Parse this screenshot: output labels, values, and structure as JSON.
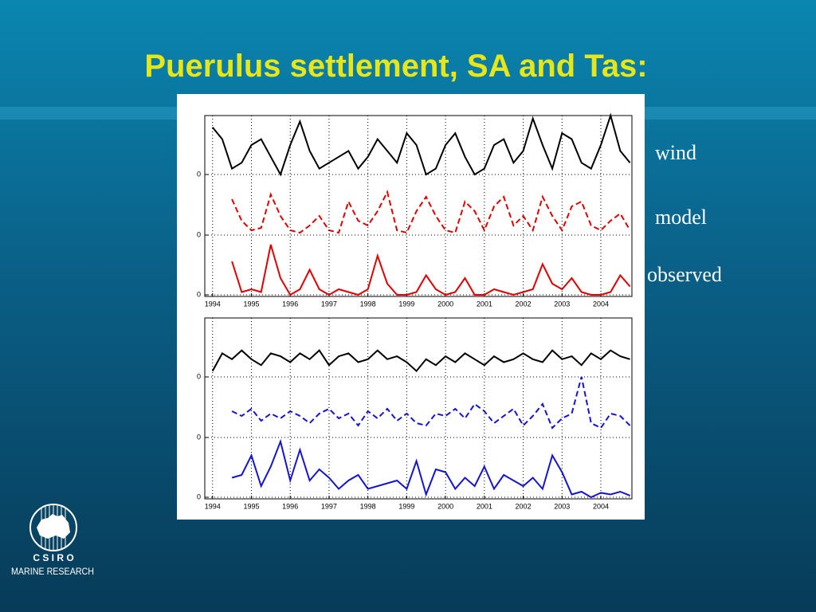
{
  "title": "Puerulus settlement, SA and Tas:",
  "trace_labels": [
    "wind",
    "model",
    "observed"
  ],
  "logo": {
    "name": "C S I R O",
    "division": "MARINE RESEARCH"
  },
  "chart_data": [
    {
      "type": "line",
      "xlim": [
        1993.8,
        2004.8
      ],
      "ylim": [
        -1,
        1
      ],
      "yticks": [
        0
      ],
      "grid": true,
      "x": [
        1994,
        1994.25,
        1994.5,
        1994.75,
        1995,
        1995.25,
        1995.5,
        1995.75,
        1996,
        1996.25,
        1996.5,
        1996.75,
        1997,
        1997.25,
        1997.5,
        1997.75,
        1998,
        1998.25,
        1998.5,
        1998.75,
        1999,
        1999.25,
        1999.5,
        1999.75,
        2000,
        2000.25,
        2000.5,
        2000.75,
        2001,
        2001.25,
        2001.5,
        2001.75,
        2002,
        2002.25,
        2002.5,
        2002.75,
        2003,
        2003.25,
        2003.5,
        2003.75,
        2004,
        2004.25,
        2004.5,
        2004.75
      ],
      "series": [
        {
          "color": "#000000",
          "line_style": "solid",
          "values": [
            0.8,
            0.6,
            0.1,
            0.2,
            0.5,
            0.6,
            0.3,
            0.0,
            0.5,
            0.9,
            0.4,
            0.1,
            0.2,
            0.3,
            0.4,
            0.1,
            0.3,
            0.6,
            0.4,
            0.2,
            0.7,
            0.5,
            0.0,
            0.1,
            0.5,
            0.7,
            0.3,
            0.0,
            0.1,
            0.5,
            0.6,
            0.2,
            0.4,
            0.95,
            0.5,
            0.1,
            0.7,
            0.6,
            0.2,
            0.1,
            0.5,
            1.0,
            0.4,
            0.2
          ]
        }
      ]
    },
    {
      "type": "line",
      "xlim": [
        1993.8,
        2004.8
      ],
      "ylim": [
        0,
        1.3
      ],
      "yticks": [
        0
      ],
      "grid": true,
      "x": [
        1994.5,
        1994.75,
        1995,
        1995.25,
        1995.5,
        1995.75,
        1996,
        1996.25,
        1996.5,
        1996.75,
        1997,
        1997.25,
        1997.5,
        1997.75,
        1998,
        1998.25,
        1998.5,
        1998.75,
        1999,
        1999.25,
        1999.5,
        1999.75,
        2000,
        2000.25,
        2000.5,
        2000.75,
        2001,
        2001.25,
        2001.5,
        2001.75,
        2002,
        2002.25,
        2002.5,
        2002.75,
        2003,
        2003.25,
        2003.5,
        2003.75,
        2004,
        2004.25,
        2004.5,
        2004.75
      ],
      "series": [
        {
          "color": "#e00000",
          "line_style": "dashed",
          "values": [
            0.75,
            0.3,
            0.1,
            0.15,
            0.85,
            0.4,
            0.1,
            0.05,
            0.2,
            0.4,
            0.1,
            0.05,
            0.7,
            0.3,
            0.2,
            0.5,
            0.9,
            0.1,
            0.05,
            0.5,
            0.8,
            0.4,
            0.1,
            0.05,
            0.7,
            0.5,
            0.1,
            0.6,
            0.8,
            0.2,
            0.4,
            0.1,
            0.8,
            0.4,
            0.1,
            0.6,
            0.7,
            0.2,
            0.1,
            0.3,
            0.45,
            0.1
          ]
        }
      ]
    },
    {
      "type": "line",
      "xlim": [
        1993.8,
        2004.8
      ],
      "ylim": [
        0,
        1.2
      ],
      "yticks": [
        0
      ],
      "grid": true,
      "xticks": [
        1994,
        1995,
        1996,
        1997,
        1998,
        1999,
        2000,
        2001,
        2002,
        2003,
        2004
      ],
      "x": [
        1994.5,
        1994.75,
        1995,
        1995.25,
        1995.5,
        1995.75,
        1996,
        1996.25,
        1996.5,
        1996.75,
        1997,
        1997.25,
        1997.5,
        1997.75,
        1998,
        1998.25,
        1998.5,
        1998.75,
        1999,
        1999.25,
        1999.5,
        1999.75,
        2000,
        2000.25,
        2000.5,
        2000.75,
        2001,
        2001.25,
        2001.5,
        2001.75,
        2002,
        2002.25,
        2002.5,
        2002.75,
        2003,
        2003.25,
        2003.5,
        2003.75,
        2004,
        2004.25,
        2004.5,
        2004.75
      ],
      "series": [
        {
          "color": "#e00000",
          "line_style": "solid",
          "values": [
            0.6,
            0.05,
            0.1,
            0.05,
            0.9,
            0.3,
            0.0,
            0.1,
            0.45,
            0.1,
            0.0,
            0.1,
            0.05,
            0.0,
            0.1,
            0.7,
            0.2,
            0.0,
            0.0,
            0.05,
            0.35,
            0.1,
            0.0,
            0.05,
            0.3,
            0.0,
            0.0,
            0.1,
            0.05,
            0.0,
            0.05,
            0.1,
            0.55,
            0.2,
            0.1,
            0.3,
            0.05,
            0.0,
            0.0,
            0.05,
            0.35,
            0.15
          ]
        }
      ]
    },
    {
      "type": "line",
      "xlim": [
        1993.8,
        2004.8
      ],
      "ylim": [
        -1,
        1
      ],
      "yticks": [
        0
      ],
      "grid": true,
      "x": [
        1994,
        1994.25,
        1994.5,
        1994.75,
        1995,
        1995.25,
        1995.5,
        1995.75,
        1996,
        1996.25,
        1996.5,
        1996.75,
        1997,
        1997.25,
        1997.5,
        1997.75,
        1998,
        1998.25,
        1998.5,
        1998.75,
        1999,
        1999.25,
        1999.5,
        1999.75,
        2000,
        2000.25,
        2000.5,
        2000.75,
        2001,
        2001.25,
        2001.5,
        2001.75,
        2002,
        2002.25,
        2002.5,
        2002.75,
        2003,
        2003.25,
        2003.5,
        2003.75,
        2004,
        2004.25,
        2004.5,
        2004.75
      ],
      "series": [
        {
          "color": "#000000",
          "line_style": "solid",
          "values": [
            0.1,
            0.4,
            0.3,
            0.45,
            0.3,
            0.2,
            0.4,
            0.35,
            0.25,
            0.4,
            0.3,
            0.45,
            0.2,
            0.35,
            0.4,
            0.25,
            0.3,
            0.45,
            0.3,
            0.35,
            0.25,
            0.1,
            0.3,
            0.2,
            0.35,
            0.25,
            0.4,
            0.3,
            0.2,
            0.35,
            0.25,
            0.3,
            0.4,
            0.3,
            0.25,
            0.45,
            0.3,
            0.35,
            0.2,
            0.4,
            0.3,
            0.45,
            0.35,
            0.3
          ]
        }
      ]
    },
    {
      "type": "line",
      "xlim": [
        1993.8,
        2004.8
      ],
      "ylim": [
        0,
        1.3
      ],
      "yticks": [
        0
      ],
      "grid": true,
      "x": [
        1994.5,
        1994.75,
        1995,
        1995.25,
        1995.5,
        1995.75,
        1996,
        1996.25,
        1996.5,
        1996.75,
        1997,
        1997.25,
        1997.5,
        1997.75,
        1998,
        1998.25,
        1998.5,
        1998.75,
        1999,
        1999.25,
        1999.5,
        1999.75,
        2000,
        2000.25,
        2000.5,
        2000.75,
        2001,
        2001.25,
        2001.5,
        2001.75,
        2002,
        2002.25,
        2002.5,
        2002.75,
        2003,
        2003.25,
        2003.5,
        2003.75,
        2004,
        2004.25,
        2004.5,
        2004.75
      ],
      "series": [
        {
          "color": "#1414d2",
          "line_style": "dashed",
          "values": [
            0.55,
            0.45,
            0.6,
            0.35,
            0.5,
            0.4,
            0.55,
            0.45,
            0.3,
            0.5,
            0.6,
            0.4,
            0.5,
            0.25,
            0.55,
            0.4,
            0.6,
            0.35,
            0.5,
            0.3,
            0.25,
            0.5,
            0.45,
            0.6,
            0.4,
            0.7,
            0.55,
            0.3,
            0.45,
            0.6,
            0.25,
            0.45,
            0.7,
            0.2,
            0.4,
            0.5,
            1.27,
            0.3,
            0.2,
            0.5,
            0.45,
            0.25
          ]
        }
      ]
    },
    {
      "type": "line",
      "xlim": [
        1993.8,
        2004.8
      ],
      "ylim": [
        0,
        1.2
      ],
      "yticks": [
        0
      ],
      "grid": true,
      "xticks": [
        1994,
        1995,
        1996,
        1997,
        1998,
        1999,
        2000,
        2001,
        2002,
        2003,
        2004
      ],
      "x": [
        1994.5,
        1994.75,
        1995,
        1995.25,
        1995.5,
        1995.75,
        1996,
        1996.25,
        1996.5,
        1996.75,
        1997,
        1997.25,
        1997.5,
        1997.75,
        1998,
        1998.25,
        1998.5,
        1998.75,
        1999,
        1999.25,
        1999.5,
        1999.75,
        2000,
        2000.25,
        2000.5,
        2000.75,
        2001,
        2001.25,
        2001.5,
        2001.75,
        2002,
        2002.25,
        2002.5,
        2002.75,
        2003,
        2003.25,
        2003.5,
        2003.75,
        2004,
        2004.25,
        2004.5,
        2004.75
      ],
      "series": [
        {
          "color": "#1414d2",
          "line_style": "solid",
          "values": [
            0.35,
            0.4,
            0.75,
            0.2,
            0.55,
            1.0,
            0.3,
            0.85,
            0.3,
            0.5,
            0.35,
            0.15,
            0.3,
            0.4,
            0.15,
            0.2,
            0.25,
            0.3,
            0.15,
            0.65,
            0.05,
            0.5,
            0.45,
            0.15,
            0.35,
            0.2,
            0.55,
            0.15,
            0.4,
            0.3,
            0.2,
            0.35,
            0.15,
            0.75,
            0.45,
            0.05,
            0.1,
            0.0,
            0.08,
            0.05,
            0.1,
            0.03
          ]
        }
      ]
    }
  ]
}
